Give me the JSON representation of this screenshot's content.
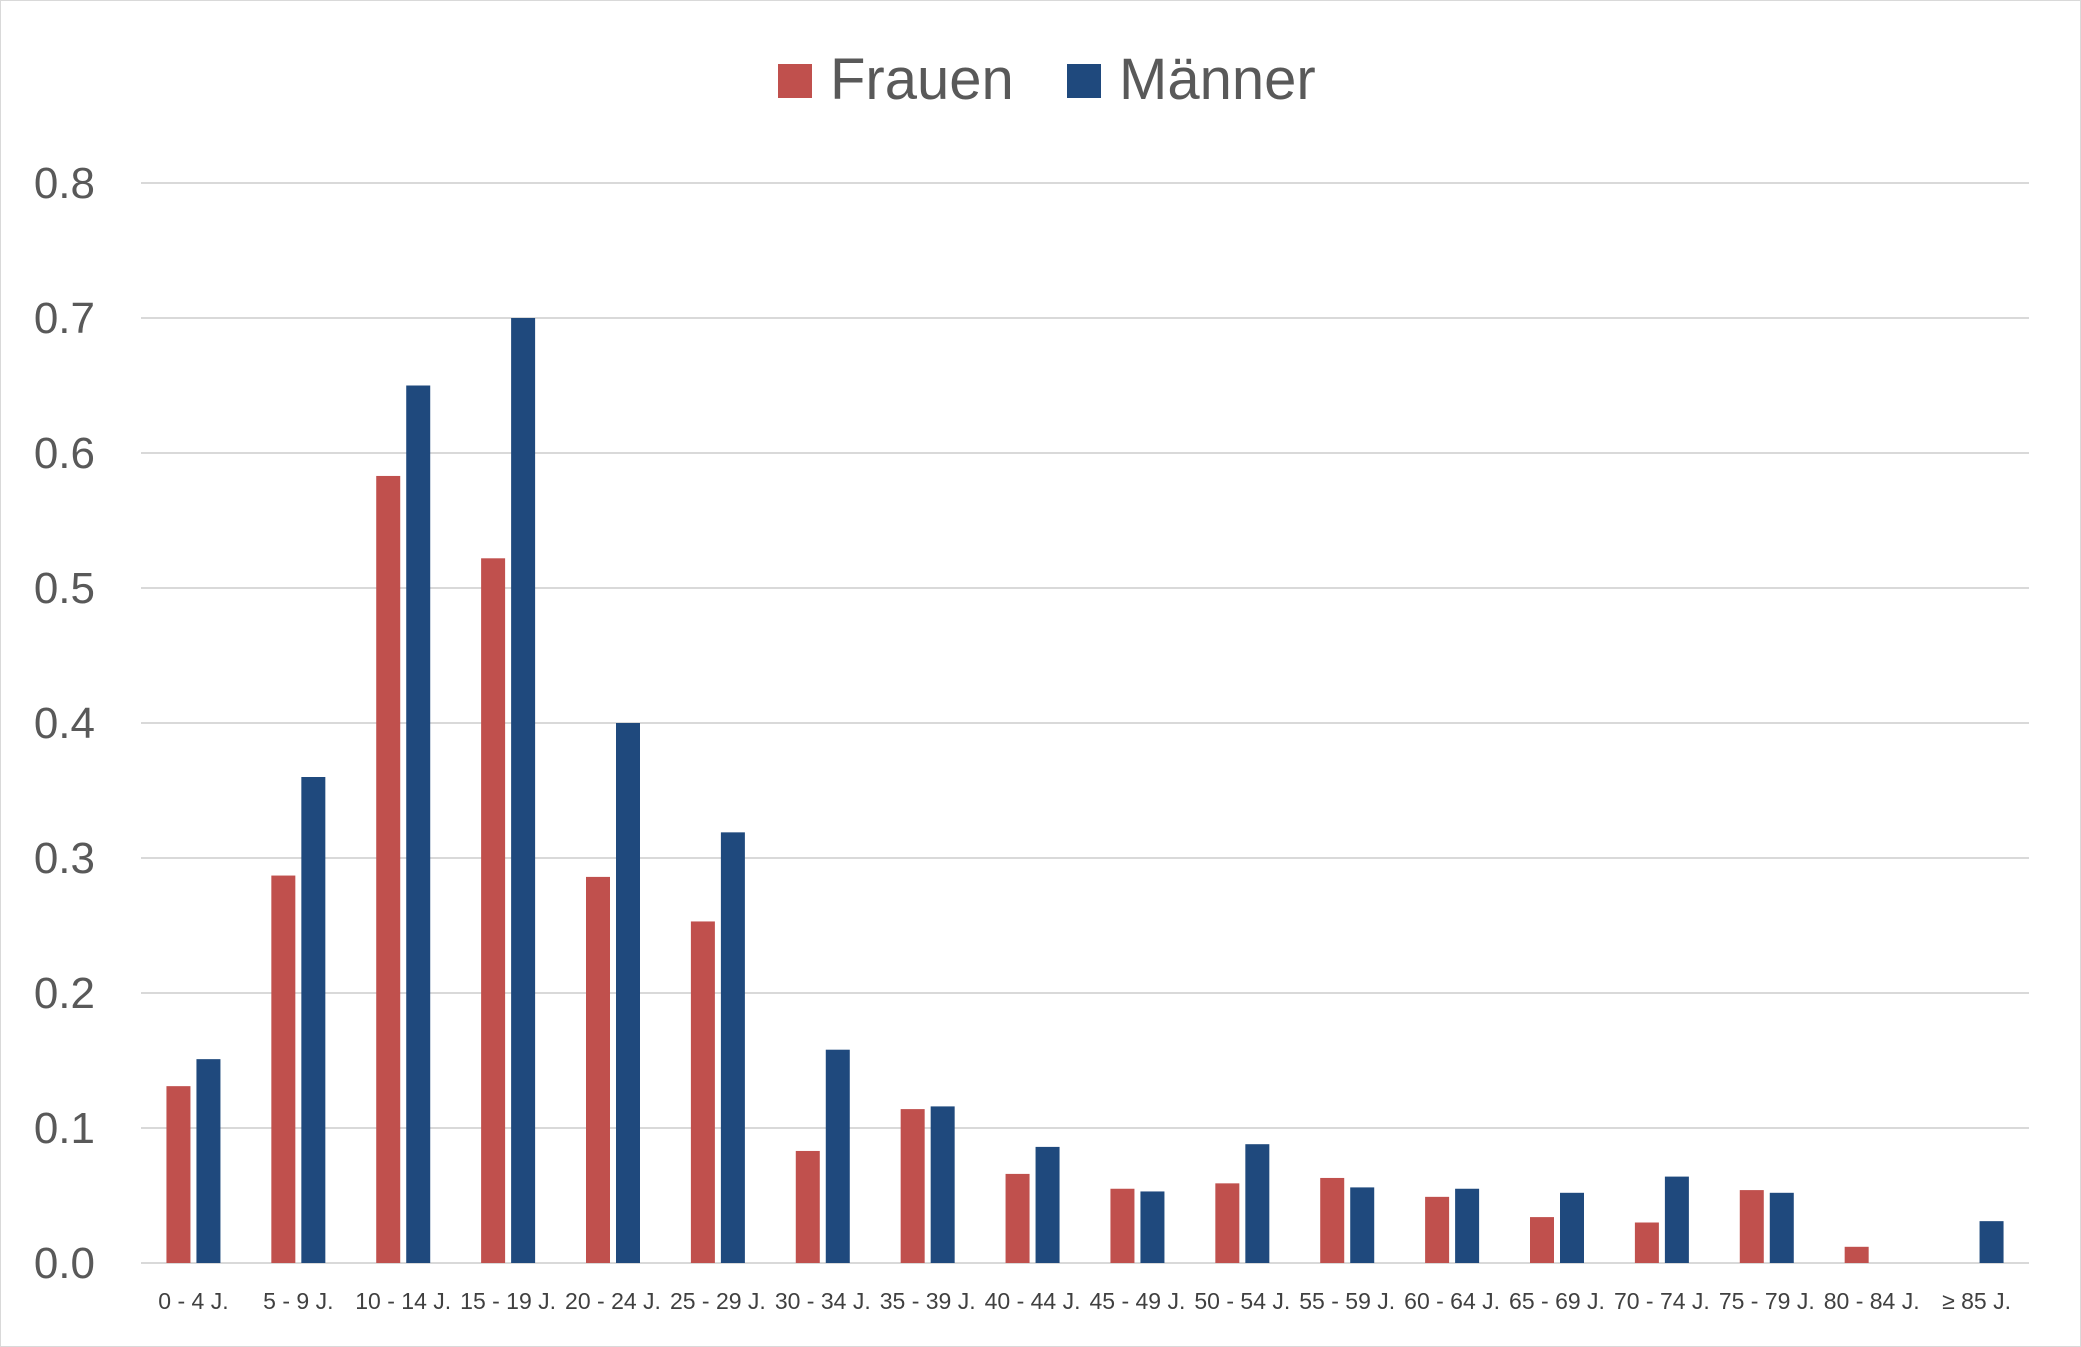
{
  "chart_data": {
    "type": "bar",
    "title": "",
    "xlabel": "",
    "ylabel": "",
    "ylim": [
      0,
      0.8
    ],
    "yticks": [
      0.0,
      0.1,
      0.2,
      0.3,
      0.4,
      0.5,
      0.6,
      0.7,
      0.8
    ],
    "ytick_labels": [
      "0.0",
      "0.1",
      "0.2",
      "0.3",
      "0.4",
      "0.5",
      "0.6",
      "0.7",
      "0.8"
    ],
    "grid": "horizontal",
    "legend_position": "top-center",
    "categories": [
      "0 - 4 J.",
      "5 - 9 J.",
      "10 - 14 J.",
      "15 - 19 J.",
      "20 - 24 J.",
      "25 - 29 J.",
      "30 - 34 J.",
      "35 - 39 J.",
      "40 - 44 J.",
      "45 - 49 J.",
      "50 - 54 J.",
      "55 - 59 J.",
      "60 - 64 J.",
      "65 - 69 J.",
      "70 - 74 J.",
      "75 - 79 J.",
      "80 - 84 J.",
      "≥ 85  J."
    ],
    "series": [
      {
        "name": "Frauen",
        "color": "#c0504d",
        "values": [
          0.131,
          0.287,
          0.583,
          0.522,
          0.286,
          0.253,
          0.083,
          0.114,
          0.066,
          0.055,
          0.059,
          0.063,
          0.049,
          0.034,
          0.03,
          0.054,
          0.012,
          0.0
        ]
      },
      {
        "name": "Männer",
        "color": "#1f497d",
        "values": [
          0.151,
          0.36,
          0.65,
          0.7,
          0.4,
          0.319,
          0.158,
          0.116,
          0.086,
          0.053,
          0.088,
          0.056,
          0.055,
          0.052,
          0.064,
          0.052,
          0.0,
          0.031
        ]
      }
    ],
    "colors": {
      "grid": "#d9d9d9",
      "text": "#595959",
      "border": "#d9d9d9"
    }
  }
}
